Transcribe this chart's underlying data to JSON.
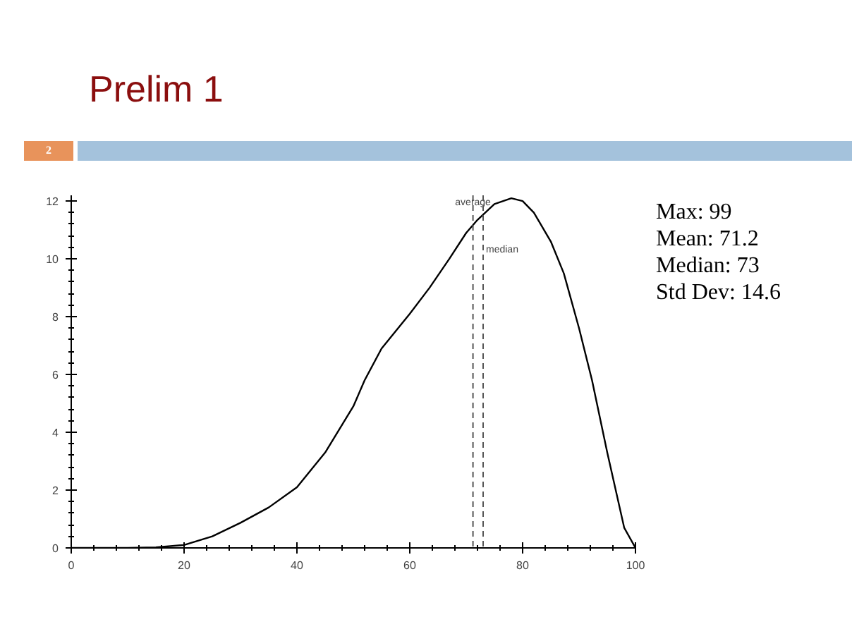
{
  "chart_data": {
    "type": "line",
    "title": "Prelim 1",
    "x": [
      0,
      10,
      15,
      20,
      25,
      30,
      35,
      40,
      45,
      50,
      52,
      55,
      60,
      63.5,
      67,
      70,
      72,
      75,
      78,
      80,
      82,
      85,
      87.3,
      90,
      92.3,
      95,
      98,
      100
    ],
    "series": [
      {
        "color": "#000000",
        "values": [
          0,
          0,
          0.02,
          0.1,
          0.4,
          0.87,
          1.4,
          2.1,
          3.3,
          4.9,
          5.8,
          6.9,
          8.1,
          9.0,
          10.0,
          10.9,
          11.35,
          11.9,
          12.1,
          12.0,
          11.6,
          10.6,
          9.5,
          7.6,
          5.8,
          3.3,
          0.7,
          0
        ]
      }
    ],
    "xlim": [
      0,
      100
    ],
    "ylim": [
      0,
      12.2
    ],
    "xticks": [
      0,
      20,
      40,
      60,
      80,
      100
    ],
    "yticks": [
      0,
      2,
      4,
      6,
      8,
      10,
      12
    ],
    "ref_lines": [
      {
        "axis": "x",
        "value": 71.2,
        "label": "average",
        "color": "#555555",
        "line_style": "dashed"
      },
      {
        "axis": "x",
        "value": 73,
        "label": "median",
        "color": "#555555",
        "line_style": "dashed"
      }
    ],
    "annotations": [
      "2",
      "Max: 99",
      "Mean: 71.2",
      "Median: 73",
      "Std Dev: 14.6"
    ],
    "grid": false,
    "marker": "none",
    "line_style": "solid"
  }
}
